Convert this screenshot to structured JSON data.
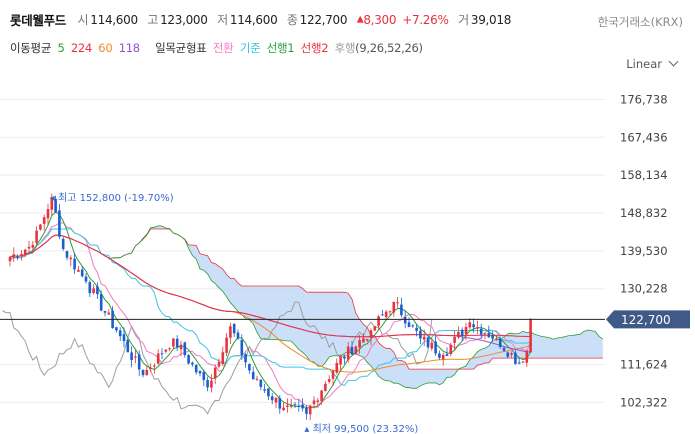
{
  "header": {
    "name": "롯데웰푸드",
    "open_label": "시",
    "open": "114,600",
    "high_label": "고",
    "high": "123,000",
    "low_label": "저",
    "low": "114,600",
    "close_label": "종",
    "close": "122,700",
    "change": "8,300",
    "change_pct": "+7.26%",
    "volume_label": "거",
    "volume": "39,018",
    "exchange": "한국거래소(KRX)"
  },
  "indicators": {
    "ma_label": "이동평균",
    "ma5": "5",
    "ma224": "224",
    "ma60": "60",
    "ma118": "118",
    "ichimoku_label": "일목균형표",
    "tenkan": "전환",
    "kijun": "기준",
    "span1": "선행1",
    "span2": "선행2",
    "chikou": "후행",
    "ichimoku_params": "(9,26,52,26)"
  },
  "scale_mode": "Linear",
  "colors": {
    "up": "#e8323c",
    "down": "#1a5fd0",
    "ma5": "#2a9d3a",
    "ma224": "#e8323c",
    "ma60": "#f08c28",
    "ma118": "#9b4fd6",
    "tenkan": "#f07cc4",
    "kijun": "#3cc6e0",
    "cloud": "#b9d4f7",
    "chikou": "#9e9e9e",
    "price_tag": "#3f5a88"
  },
  "chart_data": {
    "type": "candlestick",
    "y_ticks": [
      "176,738",
      "167,436",
      "158,134",
      "148,832",
      "139,530",
      "130,228",
      "111,624",
      "102,322"
    ],
    "ylim": [
      97000,
      182000
    ],
    "current_price": 122700,
    "current_price_label": "122,700",
    "high_annotation": "최고 152,800 (-19.70%)",
    "low_annotation": "최저 99,500 (23.32%)",
    "anchors": [
      {
        "i": 0,
        "v": 138000
      },
      {
        "i": 6,
        "v": 141000
      },
      {
        "i": 11,
        "v": 152800
      },
      {
        "i": 14,
        "v": 140000
      },
      {
        "i": 20,
        "v": 132000
      },
      {
        "i": 28,
        "v": 120000
      },
      {
        "i": 35,
        "v": 109000
      },
      {
        "i": 43,
        "v": 118000
      },
      {
        "i": 52,
        "v": 106000
      },
      {
        "i": 58,
        "v": 121000
      },
      {
        "i": 64,
        "v": 108000
      },
      {
        "i": 72,
        "v": 101000
      },
      {
        "i": 78,
        "v": 99500
      },
      {
        "i": 86,
        "v": 112000
      },
      {
        "i": 95,
        "v": 120000
      },
      {
        "i": 101,
        "v": 127000
      },
      {
        "i": 108,
        "v": 118000
      },
      {
        "i": 114,
        "v": 114000
      },
      {
        "i": 121,
        "v": 122000
      },
      {
        "i": 128,
        "v": 118000
      },
      {
        "i": 134,
        "v": 112000
      },
      {
        "i": 136,
        "v": 115000
      },
      {
        "i": 137,
        "v": 122700
      }
    ]
  }
}
